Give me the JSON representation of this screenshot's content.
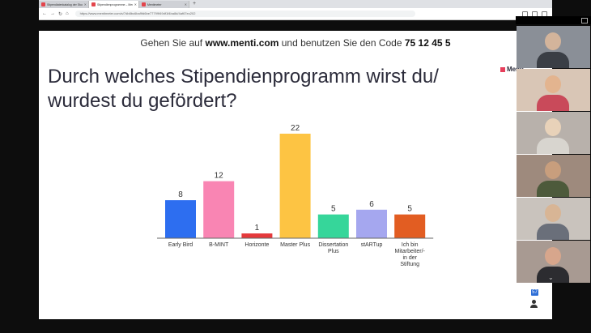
{
  "browser": {
    "tabs": [
      {
        "label": "Stipendiatenkatalog der Studienstiftung"
      },
      {
        "label": "Stipendienprogramme – Mentimeter"
      },
      {
        "label": "Mentimeter"
      }
    ],
    "new_tab": "+",
    "url": "https://www.mentimeter.com/s/7db8bc6ba9fd6be77799f49df1f4ba8d/4af67ec202"
  },
  "slide": {
    "instruction_prefix": "Gehen Sie auf ",
    "instruction_site": "www.menti.com",
    "instruction_middle": " und benutzen Sie den Code ",
    "instruction_code": "75 12 45 5",
    "question_line1": "Durch welches Stipendienprogramm wirst du/",
    "question_line2": "wurdest du gefördert?",
    "logo": "Menti"
  },
  "chart_data": {
    "type": "bar",
    "title": "",
    "xlabel": "",
    "ylabel": "",
    "ylim": [
      0,
      22
    ],
    "categories": [
      "Early Bird",
      "B-MINT",
      "Horizonte",
      "Master Plus",
      "Dissertation Plus",
      "stARTup",
      "Ich bin Mitarbeiter/-in der Stiftung"
    ],
    "category_lines": [
      [
        "Early Bird"
      ],
      [
        "B-MINT"
      ],
      [
        "Horizonte"
      ],
      [
        "Master Plus"
      ],
      [
        "Dissertation",
        "Plus"
      ],
      [
        "stARTup"
      ],
      [
        "Ich bin",
        "Mitarbeiter/-",
        "in der",
        "Stiftung"
      ]
    ],
    "values": [
      8,
      12,
      1,
      22,
      5,
      6,
      5
    ],
    "colors": [
      "#2d6ef0",
      "#f985b3",
      "#e5393b",
      "#fdc443",
      "#36d69a",
      "#a5a7ef",
      "#e25d22"
    ]
  },
  "meeting": {
    "participant_count": "57",
    "cam_colors": [
      "#8a8f97",
      "#d9c6b6",
      "#b8b1ab",
      "#9e8a7d",
      "#c9c3bd",
      "#a89a92"
    ],
    "cam_head_colors": [
      "#d3b49b",
      "#e3b48f",
      "#e8d2b9",
      "#c89e7d",
      "#d8b595",
      "#d7a68c"
    ],
    "cam_torso_colors": [
      "#3a3e45",
      "#c94a5a",
      "#d8d5cf",
      "#4d5a3b",
      "#6a6f7a",
      "#2c2c30"
    ]
  }
}
